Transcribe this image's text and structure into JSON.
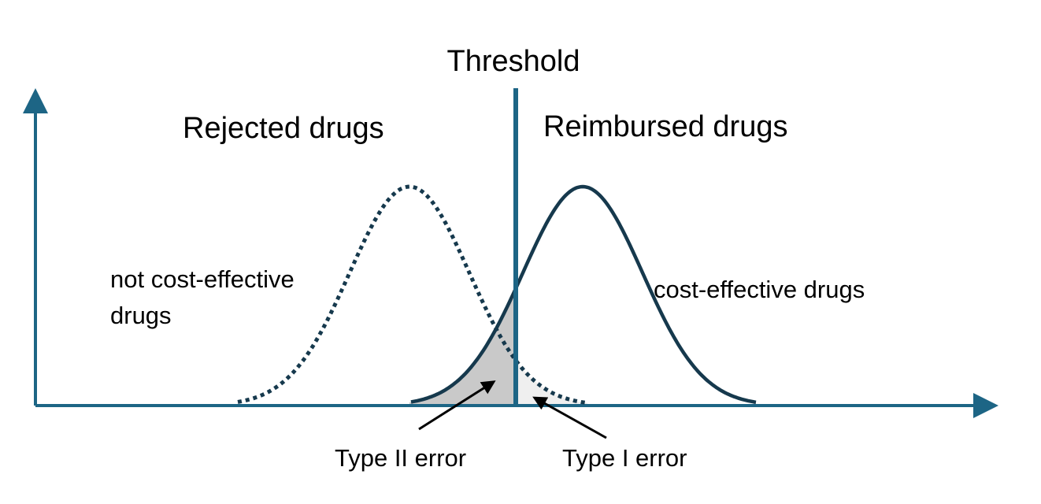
{
  "threshold": "Threshold",
  "regions": {
    "left": "Rejected drugs",
    "right": "Reimbursed drugs"
  },
  "curves": {
    "left": [
      "not cost-effective",
      "drugs"
    ],
    "right": "cost-effective drugs"
  },
  "errors": {
    "type2": "Type II error",
    "type1": "Type I error"
  }
}
